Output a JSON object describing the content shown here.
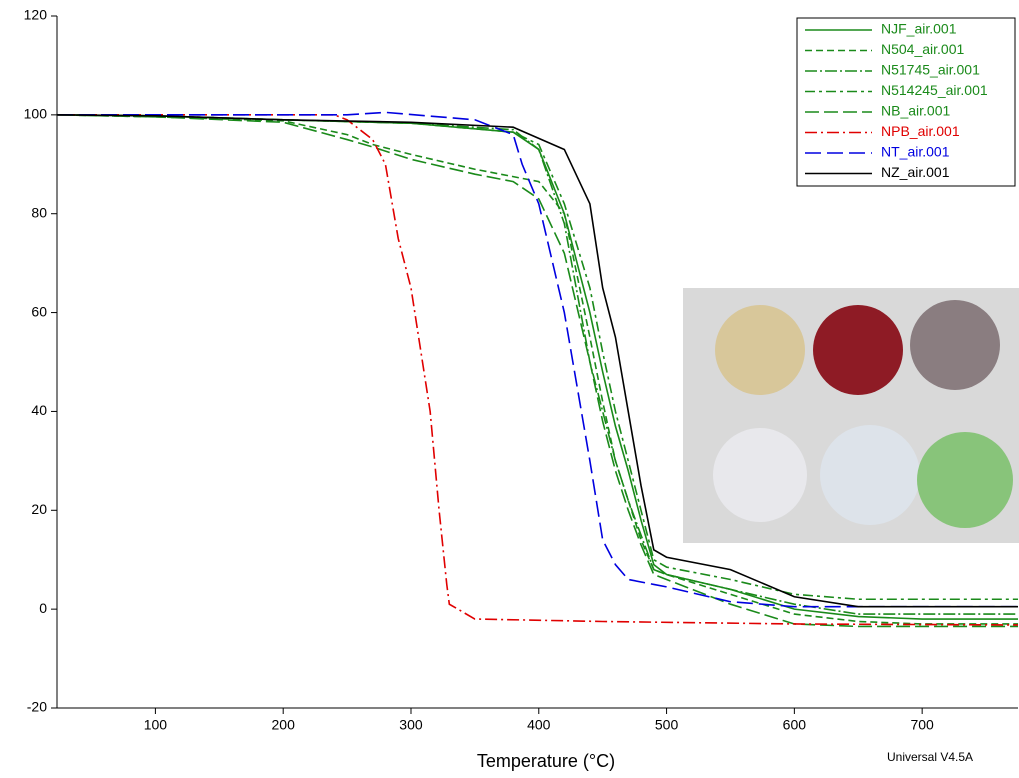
{
  "chart_data": {
    "type": "line",
    "xlabel": "Temperature (°C)",
    "footnote": "Universal V4.5A",
    "xlim": [
      23,
      775
    ],
    "ylim": [
      -20,
      120
    ],
    "xticks": [
      100,
      200,
      300,
      400,
      500,
      600,
      700
    ],
    "yticks": [
      -20,
      0,
      20,
      40,
      60,
      80,
      100,
      120
    ],
    "grid": false,
    "legend": "upper right",
    "series": [
      {
        "name": "NJF_air.001",
        "color": "#1a8a1a",
        "dash": "none",
        "x": [
          23,
          100,
          200,
          300,
          380,
          400,
          420,
          440,
          450,
          460,
          470,
          480,
          490,
          500,
          550,
          600,
          650,
          700,
          775
        ],
        "values": [
          100,
          99.8,
          99,
          98.3,
          96.5,
          93,
          80,
          60,
          48,
          37,
          28,
          18,
          9,
          7,
          4,
          0,
          -1.5,
          -2,
          -2
        ]
      },
      {
        "name": "N504_air.001",
        "color": "#1a8a1a",
        "dash": "7,4",
        "x": [
          23,
          100,
          200,
          250,
          270,
          300,
          350,
          380,
          400,
          420,
          440,
          450,
          460,
          470,
          480,
          490,
          500,
          550,
          600,
          650,
          700,
          775
        ],
        "values": [
          100,
          99.6,
          98.8,
          96,
          94,
          92,
          89,
          87.5,
          86.5,
          80,
          55,
          42,
          30,
          22,
          14,
          8,
          7,
          3,
          -1,
          -2.5,
          -3,
          -3
        ]
      },
      {
        "name": "N51745_air.001",
        "color": "#1a8a1a",
        "dash": "12,3,2,3",
        "x": [
          23,
          100,
          200,
          300,
          380,
          400,
          420,
          440,
          450,
          460,
          470,
          480,
          490,
          500,
          550,
          600,
          650,
          700,
          775
        ],
        "values": [
          100,
          99.8,
          99,
          98.3,
          97,
          93,
          78,
          50,
          40,
          30,
          22,
          15,
          8,
          7,
          4,
          1,
          -1,
          -1,
          -1
        ]
      },
      {
        "name": "N514245_air.001",
        "color": "#1a8a1a",
        "dash": "10,4,3,4",
        "x": [
          23,
          100,
          200,
          300,
          380,
          400,
          420,
          440,
          450,
          460,
          470,
          480,
          490,
          500,
          550,
          600,
          650,
          700,
          775
        ],
        "values": [
          100,
          99.8,
          99,
          98.3,
          96.5,
          94,
          82,
          65,
          52,
          40,
          30,
          20,
          10,
          8.5,
          6,
          3,
          2,
          2,
          2
        ]
      },
      {
        "name": "NB_air.001",
        "color": "#1a8a1a",
        "dash": "14,5",
        "x": [
          23,
          100,
          200,
          250,
          270,
          300,
          350,
          380,
          400,
          420,
          440,
          450,
          460,
          470,
          480,
          490,
          500,
          550,
          600,
          650,
          700,
          775
        ],
        "values": [
          100,
          99.6,
          98.5,
          95,
          93.5,
          91,
          88,
          86.5,
          83,
          72,
          50,
          38,
          28,
          20,
          13,
          7,
          6,
          1,
          -3,
          -3.5,
          -3.5,
          -3.5
        ]
      },
      {
        "name": "NPB_air.001",
        "color": "#e00000",
        "dash": "12,4,2,4",
        "x": [
          23,
          100,
          200,
          240,
          250,
          270,
          280,
          290,
          300,
          315,
          322,
          328,
          330,
          350,
          450,
          600,
          775
        ],
        "values": [
          100,
          100,
          100,
          100,
          99,
          95,
          90,
          75,
          65,
          40,
          20,
          5,
          1,
          -2,
          -2.5,
          -3,
          -3.2
        ]
      },
      {
        "name": "NT_air.001",
        "color": "#0000e0",
        "dash": "16,6",
        "x": [
          23,
          100,
          200,
          250,
          280,
          350,
          380,
          387,
          400,
          420,
          440,
          450,
          460,
          470,
          490,
          500,
          550,
          600,
          650,
          775
        ],
        "values": [
          100,
          100,
          100,
          100,
          100.5,
          99,
          96,
          90,
          82,
          60,
          30,
          14,
          9,
          6,
          5,
          4.5,
          1.5,
          0.5,
          0.5,
          0.5
        ]
      },
      {
        "name": "NZ_air.001",
        "color": "#000000",
        "dash": "none",
        "x": [
          23,
          100,
          200,
          300,
          380,
          420,
          440,
          450,
          460,
          470,
          480,
          490,
          500,
          550,
          600,
          650,
          775
        ],
        "values": [
          100,
          99.8,
          99,
          98.5,
          97.5,
          93,
          82,
          65,
          55,
          40,
          25,
          12,
          10.5,
          8,
          2.5,
          0.5,
          0.5
        ]
      }
    ]
  }
}
